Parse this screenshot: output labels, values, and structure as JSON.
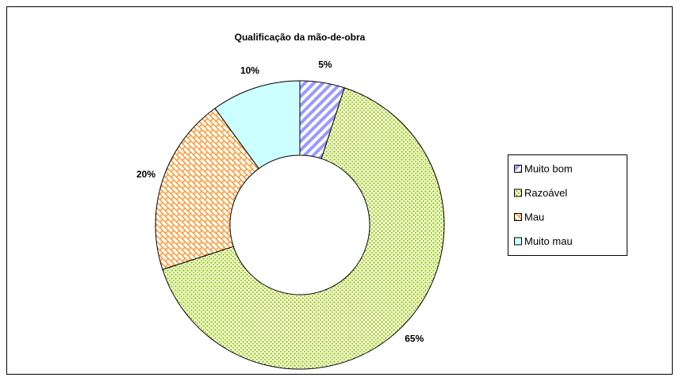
{
  "chart_data": {
    "type": "donut",
    "title": "Qualificação da mão-de-obra",
    "categories": [
      "Muito bom",
      "Razoável",
      "Mau",
      "Muito mau"
    ],
    "values": [
      5,
      65,
      20,
      10
    ],
    "value_labels": [
      "5%",
      "65%",
      "20%",
      "10%"
    ],
    "colors": [
      "#9999ff",
      "#99cc00",
      "#ff9933",
      "#ccffff"
    ],
    "legend": "right"
  }
}
